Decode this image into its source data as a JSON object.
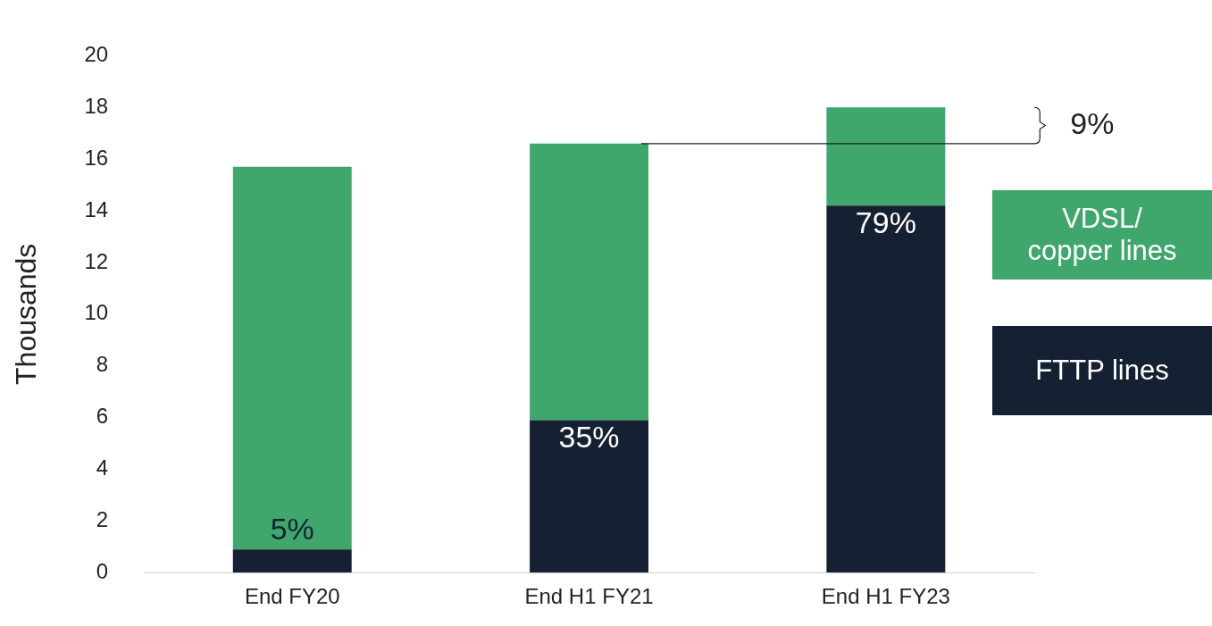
{
  "chart_data": {
    "type": "bar",
    "stacked": true,
    "ylabel": "Thousands",
    "categories": [
      "End FY20",
      "End H1 FY21",
      "End H1 FY23"
    ],
    "series": [
      {
        "name": "FTTP lines",
        "color": "#162033",
        "values": [
          0.9,
          5.9,
          14.2
        ]
      },
      {
        "name": "VDSL/\ncopper lines",
        "color": "#3fa76c",
        "values": [
          14.8,
          10.7,
          3.8
        ]
      }
    ],
    "ylim": [
      0,
      20
    ],
    "yticks": [
      0,
      2,
      4,
      6,
      8,
      10,
      12,
      14,
      16,
      18,
      20
    ],
    "grid": false,
    "legend": "right",
    "annotations": [
      {
        "text": "5%",
        "x": "End FY20",
        "y": 0.9
      },
      {
        "text": "35%",
        "x": "End H1 FY21",
        "y": 5.9
      },
      {
        "text": "79%",
        "x": "End H1 FY23",
        "y": 14.2
      },
      "9%"
    ]
  }
}
